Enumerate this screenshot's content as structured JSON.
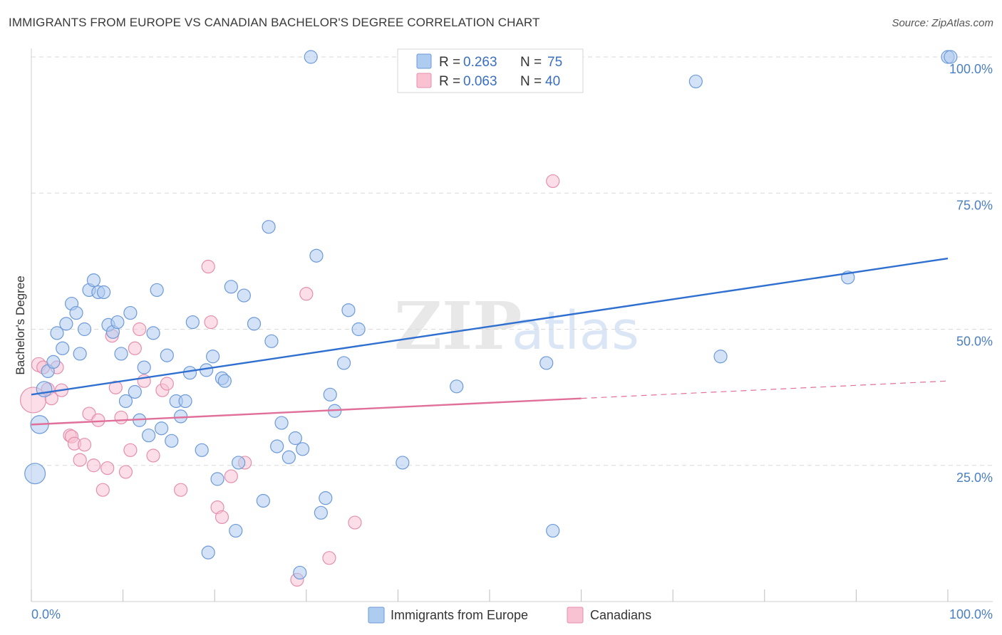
{
  "title": "IMMIGRANTS FROM EUROPE VS CANADIAN BACHELOR'S DEGREE CORRELATION CHART",
  "source": "Source: ZipAtlas.com",
  "watermark": {
    "zip": "ZIP",
    "atlas": "atlas"
  },
  "colors": {
    "blue_fill": "#aecbf0",
    "blue_stroke": "#6d9ad8",
    "blue_line": "#2f6fcf",
    "pink_fill": "#f8c2d3",
    "pink_stroke": "#e58fae",
    "pink_line": "#e0709a",
    "grid": "#d9d9d9",
    "tick_text": "#4a7fc1"
  },
  "legend": {
    "row1": {
      "r_label": "R =",
      "r_value": "0.263",
      "n_label": "N =",
      "n_value": "75"
    },
    "row2": {
      "r_label": "R =",
      "r_value": "0.063",
      "n_label": "N =",
      "n_value": "40"
    }
  },
  "bottom_legend": {
    "series1": "Immigrants from Europe",
    "series2": "Canadians"
  },
  "chart_data": {
    "type": "scatter",
    "title": "IMMIGRANTS FROM EUROPE VS CANADIAN BACHELOR'S DEGREE CORRELATION CHART",
    "xlabel": "",
    "ylabel": "Bachelor's Degree",
    "xlim": [
      0,
      100
    ],
    "ylim": [
      0,
      100
    ],
    "x_tick_labels": {
      "min": "0.0%",
      "max": "100.0%"
    },
    "y_tick_labels": [
      {
        "v": 25,
        "label": "25.0%"
      },
      {
        "v": 50,
        "label": "50.0%"
      },
      {
        "v": 75,
        "label": "75.0%"
      },
      {
        "v": 100,
        "label": "100.0%"
      }
    ],
    "series": [
      {
        "name": "Immigrants from Europe",
        "R": 0.263,
        "N": 75,
        "trend": {
          "x0": 0,
          "y0": 38.0,
          "x1": 100,
          "y1": 63.0
        },
        "points": [
          [
            0.4,
            23.5,
            1.6
          ],
          [
            0.9,
            32.5,
            1.4
          ],
          [
            1.4,
            39.0,
            1.2
          ],
          [
            1.8,
            42.3,
            1.0
          ],
          [
            2.4,
            44.0,
            1.0
          ],
          [
            2.8,
            49.3,
            1.0
          ],
          [
            3.4,
            46.5,
            1.0
          ],
          [
            3.8,
            51.0,
            1.0
          ],
          [
            4.4,
            54.7,
            1.0
          ],
          [
            4.9,
            53.0,
            1.0
          ],
          [
            5.3,
            45.5,
            1.0
          ],
          [
            5.8,
            50.0,
            1.0
          ],
          [
            6.3,
            57.2,
            1.0
          ],
          [
            6.8,
            59.0,
            1.0
          ],
          [
            7.3,
            56.8,
            1.0
          ],
          [
            7.9,
            56.8,
            1.0
          ],
          [
            8.4,
            50.8,
            1.0
          ],
          [
            8.9,
            49.5,
            1.0
          ],
          [
            9.4,
            51.3,
            1.0
          ],
          [
            9.8,
            45.5,
            1.0
          ],
          [
            10.3,
            36.8,
            1.0
          ],
          [
            10.8,
            53.0,
            1.0
          ],
          [
            11.3,
            38.5,
            1.0
          ],
          [
            11.8,
            33.3,
            1.0
          ],
          [
            12.3,
            43.0,
            1.0
          ],
          [
            12.8,
            30.5,
            1.0
          ],
          [
            13.3,
            49.3,
            1.0
          ],
          [
            13.7,
            57.2,
            1.0
          ],
          [
            14.2,
            31.8,
            1.0
          ],
          [
            14.8,
            45.2,
            1.0
          ],
          [
            15.3,
            29.5,
            1.0
          ],
          [
            15.8,
            36.8,
            1.0
          ],
          [
            16.3,
            34.0,
            1.0
          ],
          [
            16.8,
            36.8,
            1.0
          ],
          [
            17.3,
            42.0,
            1.0
          ],
          [
            17.6,
            51.3,
            1.0
          ],
          [
            18.6,
            27.8,
            1.0
          ],
          [
            19.1,
            42.5,
            1.0
          ],
          [
            19.3,
            9.0,
            1.0
          ],
          [
            19.8,
            45.0,
            1.0
          ],
          [
            20.3,
            22.5,
            1.0
          ],
          [
            20.8,
            41.0,
            1.0
          ],
          [
            21.1,
            40.5,
            1.0
          ],
          [
            21.8,
            57.8,
            1.0
          ],
          [
            22.3,
            13.0,
            1.0
          ],
          [
            22.6,
            25.5,
            1.0
          ],
          [
            23.2,
            56.2,
            1.0
          ],
          [
            24.3,
            51.0,
            1.0
          ],
          [
            25.3,
            18.5,
            1.0
          ],
          [
            25.9,
            68.8,
            1.0
          ],
          [
            26.2,
            47.8,
            1.0
          ],
          [
            26.8,
            28.5,
            1.0
          ],
          [
            27.3,
            32.8,
            1.0
          ],
          [
            28.1,
            26.5,
            1.0
          ],
          [
            28.8,
            30.0,
            1.0
          ],
          [
            29.3,
            5.3,
            1.0
          ],
          [
            29.6,
            28.0,
            1.0
          ],
          [
            30.5,
            100.0,
            1.0
          ],
          [
            31.1,
            63.5,
            1.0
          ],
          [
            31.6,
            16.3,
            1.0
          ],
          [
            32.1,
            19.0,
            1.0
          ],
          [
            32.6,
            38.0,
            1.0
          ],
          [
            33.1,
            35.0,
            1.0
          ],
          [
            34.1,
            43.8,
            1.0
          ],
          [
            34.6,
            53.5,
            1.0
          ],
          [
            35.7,
            50.0,
            1.0
          ],
          [
            40.5,
            25.5,
            1.0
          ],
          [
            46.4,
            39.5,
            1.0
          ],
          [
            56.2,
            43.8,
            1.0
          ],
          [
            56.9,
            13.0,
            1.0
          ],
          [
            72.5,
            95.5,
            1.0
          ],
          [
            75.2,
            45.0,
            1.0
          ],
          [
            89.1,
            59.5,
            1.0
          ],
          [
            100.0,
            100.0,
            1.0
          ],
          [
            100.3,
            100.0,
            1.0
          ]
        ]
      },
      {
        "name": "Canadians",
        "R": 0.063,
        "N": 40,
        "trend": {
          "x0": 0,
          "y0": 32.5,
          "x1": 60,
          "y1": 37.3
        },
        "trend_dashed_to": {
          "x": 100,
          "y": 40.5
        },
        "points": [
          [
            0.2,
            37.0,
            2.0
          ],
          [
            0.8,
            43.5,
            1.1
          ],
          [
            1.3,
            43.0,
            1.0
          ],
          [
            1.8,
            39.0,
            1.0
          ],
          [
            2.2,
            37.3,
            1.0
          ],
          [
            2.8,
            43.0,
            1.0
          ],
          [
            3.3,
            38.8,
            1.0
          ],
          [
            4.2,
            30.5,
            1.0
          ],
          [
            4.4,
            30.3,
            1.0
          ],
          [
            4.7,
            29.0,
            1.0
          ],
          [
            5.3,
            26.0,
            1.0
          ],
          [
            5.8,
            28.8,
            1.0
          ],
          [
            6.3,
            34.5,
            1.0
          ],
          [
            6.8,
            25.0,
            1.0
          ],
          [
            7.3,
            33.3,
            1.0
          ],
          [
            7.8,
            20.5,
            1.0
          ],
          [
            8.3,
            24.5,
            1.0
          ],
          [
            8.8,
            48.8,
            1.0
          ],
          [
            9.2,
            39.3,
            1.0
          ],
          [
            9.8,
            33.8,
            1.0
          ],
          [
            10.3,
            23.8,
            1.0
          ],
          [
            10.8,
            27.8,
            1.0
          ],
          [
            11.3,
            46.5,
            1.0
          ],
          [
            11.8,
            50.0,
            1.0
          ],
          [
            12.3,
            40.5,
            1.0
          ],
          [
            13.3,
            26.8,
            1.0
          ],
          [
            14.3,
            38.8,
            1.0
          ],
          [
            14.8,
            40.0,
            1.0
          ],
          [
            16.3,
            20.5,
            1.0
          ],
          [
            19.3,
            61.5,
            1.0
          ],
          [
            19.6,
            51.3,
            1.0
          ],
          [
            20.3,
            17.3,
            1.0
          ],
          [
            20.8,
            15.5,
            1.0
          ],
          [
            21.8,
            23.0,
            1.0
          ],
          [
            23.3,
            25.5,
            1.0
          ],
          [
            29.0,
            4.0,
            1.0
          ],
          [
            30.0,
            56.5,
            1.0
          ],
          [
            32.5,
            8.0,
            1.0
          ],
          [
            35.3,
            14.5,
            1.0
          ],
          [
            56.9,
            77.2,
            1.0
          ]
        ]
      }
    ]
  }
}
